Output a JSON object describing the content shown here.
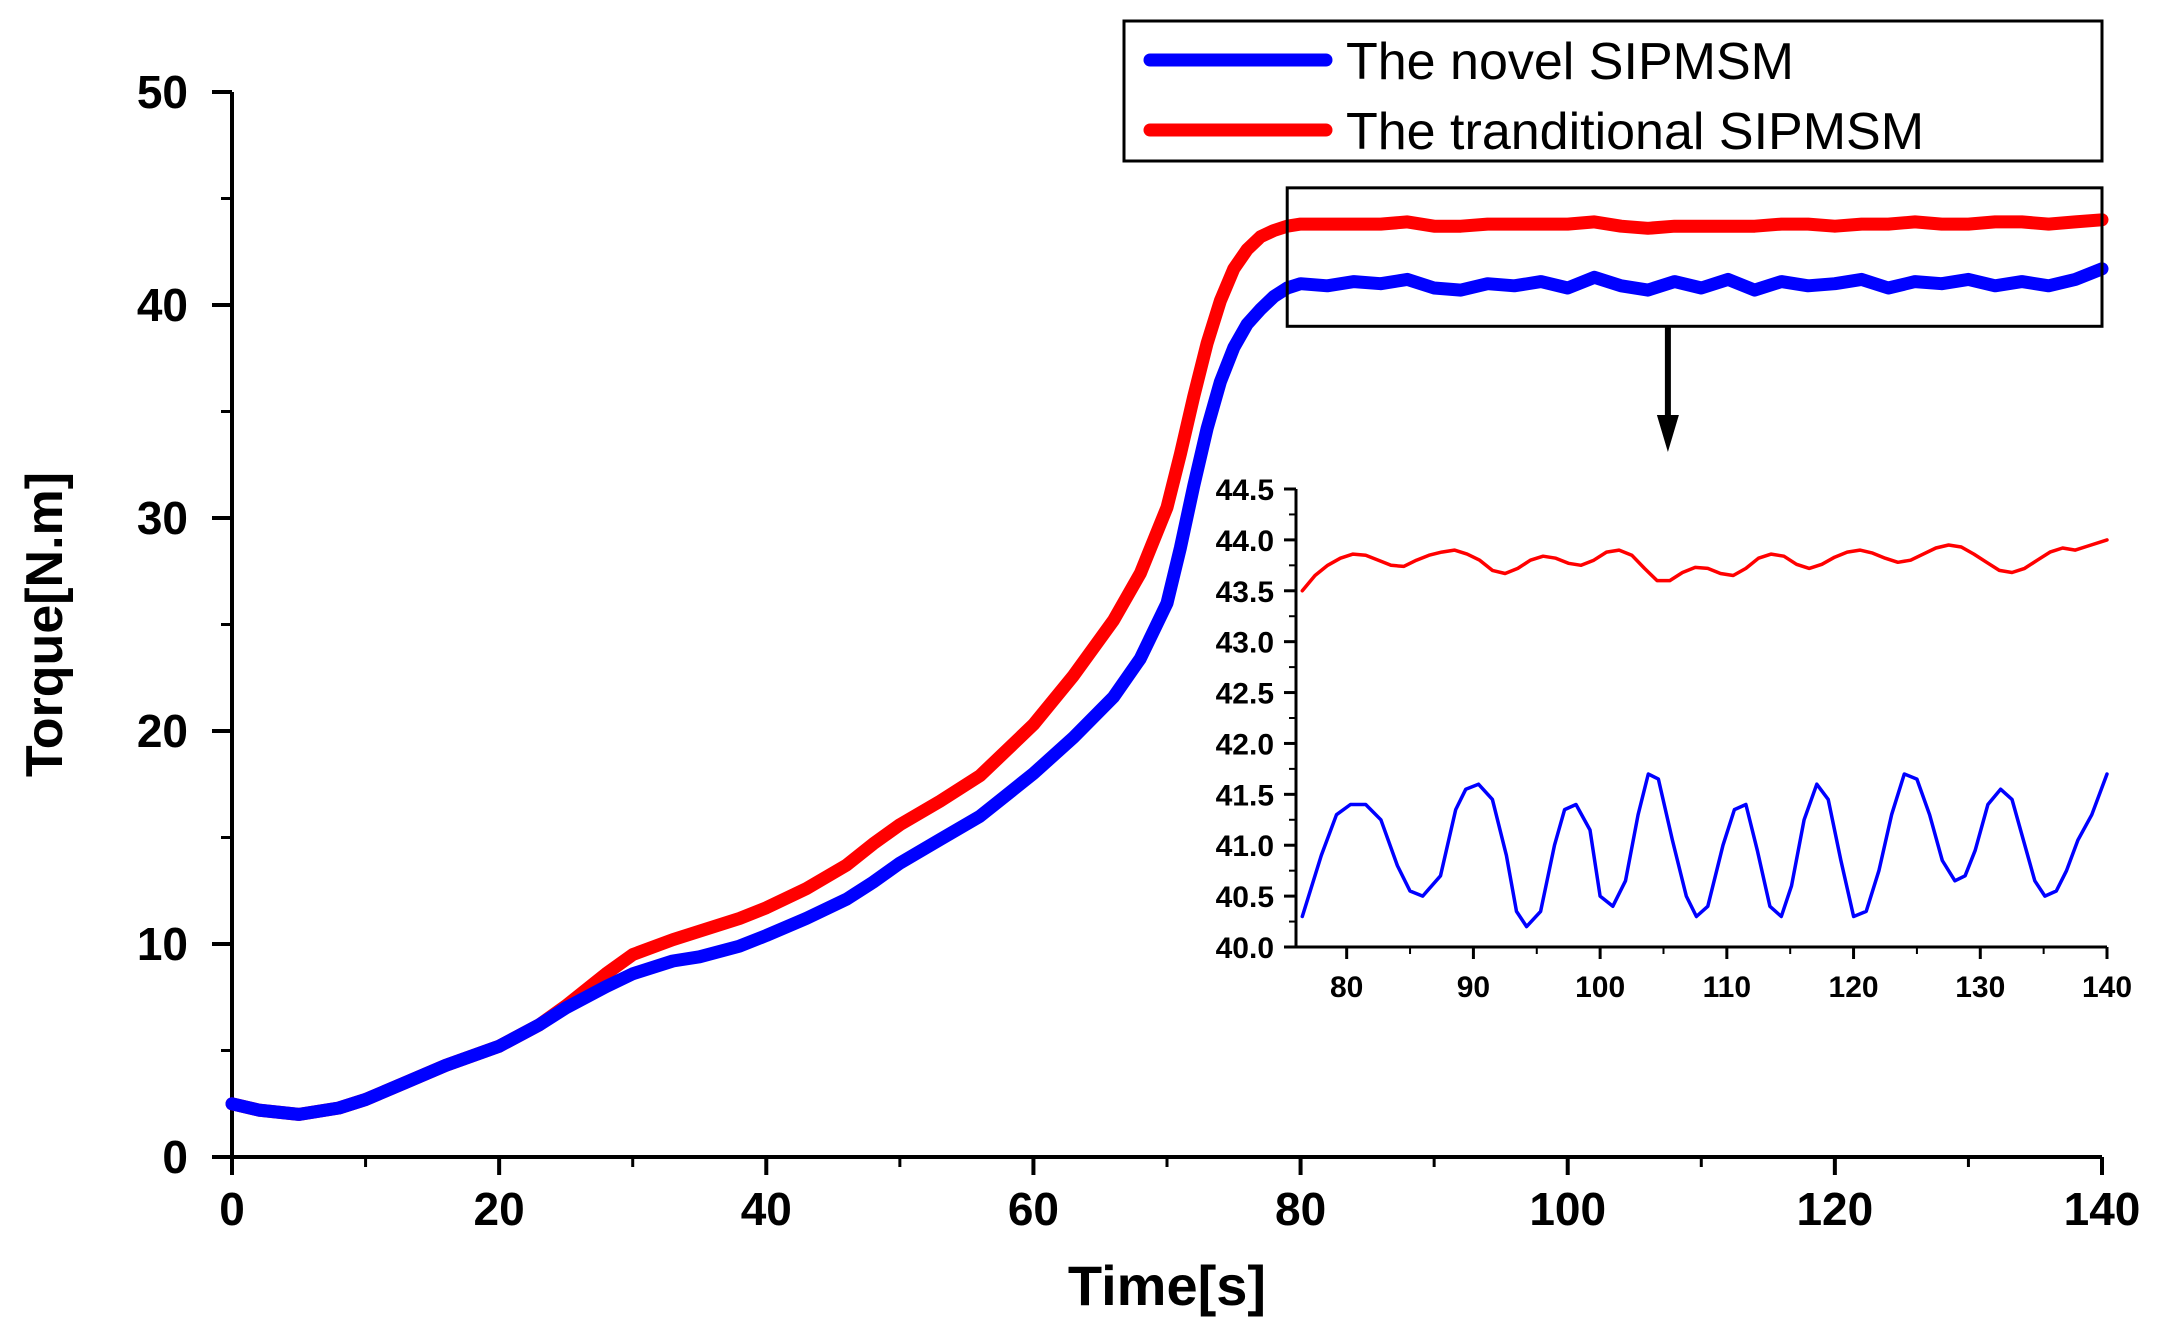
{
  "chart_data": [
    {
      "type": "line",
      "title": "",
      "xlabel": "Time[s]",
      "ylabel": "Torque[N.m]",
      "xlim": [
        0,
        140
      ],
      "ylim": [
        0,
        50
      ],
      "xticks": [
        0,
        20,
        40,
        60,
        80,
        100,
        120,
        140
      ],
      "yticks": [
        0,
        10,
        20,
        30,
        40,
        50
      ],
      "grid": false,
      "legend_position": "top-right",
      "series": [
        {
          "name": "The novel SIPMSM",
          "color": "#0000ff",
          "x": [
            0,
            2,
            5,
            8,
            10,
            13,
            16,
            20,
            23,
            25,
            28,
            30,
            33,
            35,
            38,
            40,
            43,
            46,
            48,
            50,
            53,
            56,
            58,
            60,
            63,
            66,
            68,
            70,
            71,
            72,
            73,
            74,
            75,
            76,
            77,
            78,
            79,
            80,
            82,
            84,
            86,
            88,
            90,
            92,
            94,
            96,
            98,
            100,
            102,
            104,
            106,
            108,
            110,
            112,
            114,
            116,
            118,
            120,
            122,
            124,
            126,
            128,
            130,
            132,
            134,
            136,
            138,
            140
          ],
          "y": [
            2.5,
            2.2,
            2.0,
            2.3,
            2.7,
            3.5,
            4.3,
            5.2,
            6.2,
            7.0,
            8.0,
            8.6,
            9.2,
            9.4,
            9.9,
            10.4,
            11.2,
            12.1,
            12.9,
            13.8,
            14.9,
            16.0,
            17.0,
            18.0,
            19.7,
            21.6,
            23.4,
            26.0,
            28.6,
            31.5,
            34.2,
            36.4,
            38.0,
            39.1,
            39.8,
            40.4,
            40.8,
            41.0,
            40.9,
            41.1,
            41.0,
            41.2,
            40.8,
            40.7,
            41.0,
            40.9,
            41.1,
            40.8,
            41.3,
            40.9,
            40.7,
            41.1,
            40.8,
            41.2,
            40.7,
            41.1,
            40.9,
            41.0,
            41.2,
            40.8,
            41.1,
            41.0,
            41.2,
            40.9,
            41.1,
            40.9,
            41.2,
            41.7
          ]
        },
        {
          "name": "The tranditional SIPMSM",
          "color": "#ff0000",
          "x": [
            0,
            2,
            5,
            8,
            10,
            13,
            16,
            20,
            23,
            25,
            28,
            30,
            33,
            35,
            38,
            40,
            43,
            46,
            48,
            50,
            53,
            56,
            58,
            60,
            63,
            66,
            68,
            70,
            71,
            72,
            73,
            74,
            75,
            76,
            77,
            78,
            79,
            80,
            82,
            84,
            86,
            88,
            90,
            92,
            94,
            96,
            98,
            100,
            102,
            104,
            106,
            108,
            110,
            112,
            114,
            116,
            118,
            120,
            122,
            124,
            126,
            128,
            130,
            132,
            134,
            136,
            138,
            140
          ],
          "y": [
            2.5,
            2.2,
            2.0,
            2.3,
            2.7,
            3.5,
            4.3,
            5.2,
            6.2,
            7.1,
            8.6,
            9.5,
            10.2,
            10.6,
            11.2,
            11.7,
            12.6,
            13.7,
            14.7,
            15.6,
            16.7,
            17.9,
            19.1,
            20.3,
            22.6,
            25.2,
            27.4,
            30.5,
            33.0,
            35.7,
            38.2,
            40.2,
            41.7,
            42.6,
            43.2,
            43.5,
            43.7,
            43.8,
            43.8,
            43.8,
            43.8,
            43.9,
            43.7,
            43.7,
            43.8,
            43.8,
            43.8,
            43.8,
            43.9,
            43.7,
            43.6,
            43.7,
            43.7,
            43.7,
            43.7,
            43.8,
            43.8,
            43.7,
            43.8,
            43.8,
            43.9,
            43.8,
            43.8,
            43.9,
            43.9,
            43.8,
            43.9,
            44.0
          ]
        }
      ],
      "annotations": [
        "zoom box over 80–140 s with arrow pointing to inset"
      ]
    },
    {
      "type": "line",
      "title": "",
      "xlabel": "",
      "ylabel": "",
      "xlim": [
        76,
        140
      ],
      "ylim": [
        40.0,
        44.5
      ],
      "xticks": [
        80,
        90,
        100,
        110,
        120,
        130,
        140
      ],
      "yticks": [
        "40.0",
        "40.5",
        "41.0",
        "41.5",
        "42.0",
        "42.5",
        "43.0",
        "43.5",
        "44.0",
        "44.5"
      ],
      "grid": false,
      "legend_position": "none",
      "series": [
        {
          "name": "The novel SIPMSM",
          "color": "#0000ff",
          "x": [
            76.5,
            78,
            79.2,
            80.3,
            81.5,
            82.7,
            84,
            85,
            86,
            87.4,
            88.6,
            89.4,
            90.4,
            91.5,
            92.6,
            93.4,
            94.2,
            95.3,
            96.4,
            97.2,
            98.1,
            99.2,
            100,
            101,
            102,
            103,
            103.8,
            104.6,
            105.7,
            106.8,
            107.6,
            108.5,
            109.7,
            110.6,
            111.5,
            112.4,
            113.4,
            114.3,
            115.1,
            116.1,
            117.1,
            118,
            119,
            120,
            121,
            122,
            123,
            124,
            125,
            126,
            127,
            128,
            128.8,
            129.6,
            130.6,
            131.6,
            132.5,
            133.4,
            134.3,
            135.1,
            136,
            136.8,
            137.7,
            138.8,
            140
          ],
          "y": [
            40.3,
            40.9,
            41.3,
            41.4,
            41.4,
            41.25,
            40.8,
            40.55,
            40.5,
            40.7,
            41.35,
            41.55,
            41.6,
            41.45,
            40.9,
            40.35,
            40.2,
            40.35,
            41.0,
            41.35,
            41.4,
            41.15,
            40.5,
            40.4,
            40.65,
            41.3,
            41.7,
            41.65,
            41.05,
            40.5,
            40.3,
            40.4,
            41.0,
            41.35,
            41.4,
            40.95,
            40.4,
            40.3,
            40.6,
            41.25,
            41.6,
            41.45,
            40.85,
            40.3,
            40.35,
            40.75,
            41.3,
            41.7,
            41.65,
            41.3,
            40.85,
            40.65,
            40.7,
            40.95,
            41.4,
            41.55,
            41.45,
            41.05,
            40.65,
            40.5,
            40.55,
            40.75,
            41.05,
            41.3,
            41.7
          ]
        },
        {
          "name": "The tranditional SIPMSM",
          "color": "#ff0000",
          "x": [
            76.5,
            77.5,
            78.5,
            79.5,
            80.5,
            81.5,
            82.5,
            83.5,
            84.5,
            85.5,
            86.5,
            87.5,
            88.5,
            89.5,
            90.5,
            91.5,
            92.5,
            93.5,
            94.5,
            95.5,
            96.5,
            97.5,
            98.5,
            99.5,
            100.5,
            101.5,
            102.5,
            103.5,
            104.5,
            105.5,
            106.5,
            107.5,
            108.5,
            109.5,
            110.5,
            111.5,
            112.5,
            113.5,
            114.5,
            115.5,
            116.5,
            117.5,
            118.5,
            119.5,
            120.5,
            121.5,
            122.5,
            123.5,
            124.5,
            125.5,
            126.5,
            127.5,
            128.5,
            129.5,
            130.5,
            131.5,
            132.5,
            133.5,
            134.5,
            135.5,
            136.5,
            137.5,
            138.5,
            140
          ],
          "y": [
            43.5,
            43.65,
            43.75,
            43.82,
            43.86,
            43.85,
            43.8,
            43.75,
            43.74,
            43.8,
            43.85,
            43.88,
            43.9,
            43.86,
            43.8,
            43.7,
            43.67,
            43.72,
            43.8,
            43.84,
            43.82,
            43.77,
            43.75,
            43.8,
            43.88,
            43.9,
            43.85,
            43.72,
            43.6,
            43.6,
            43.68,
            43.73,
            43.72,
            43.67,
            43.65,
            43.72,
            43.82,
            43.86,
            43.84,
            43.76,
            43.72,
            43.76,
            43.83,
            43.88,
            43.9,
            43.87,
            43.82,
            43.78,
            43.8,
            43.86,
            43.92,
            43.95,
            43.93,
            43.86,
            43.78,
            43.7,
            43.68,
            43.72,
            43.8,
            43.88,
            43.92,
            43.9,
            43.94,
            44.0
          ]
        }
      ]
    }
  ]
}
